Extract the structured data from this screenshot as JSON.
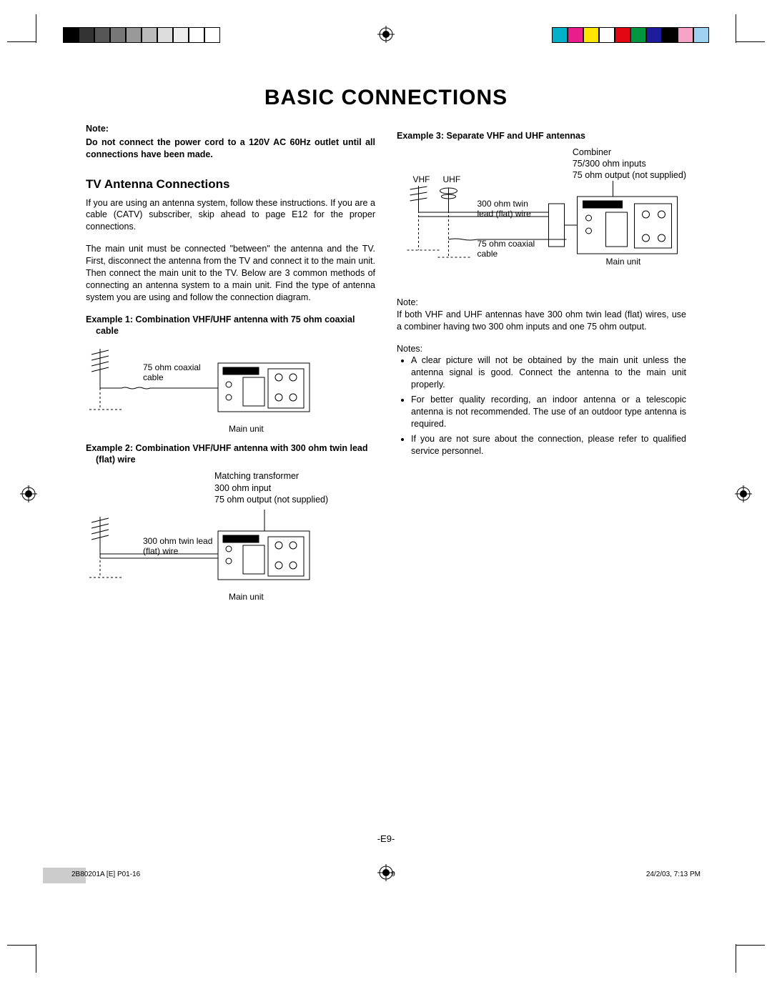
{
  "colorbars": {
    "left": [
      "#000000",
      "#333333",
      "#555555",
      "#777777",
      "#999999",
      "#bbbbbb",
      "#dddddd",
      "#eeeeee",
      "#ffffff",
      "#ffffff"
    ],
    "right": [
      "#00b0c8",
      "#e91e8c",
      "#ffe600",
      "#ffffff",
      "#e30613",
      "#009640",
      "#1d1d9c",
      "#000000",
      "#f5a3c7",
      "#9ed2f0"
    ],
    "border": "#000000"
  },
  "title": "BASIC CONNECTIONS",
  "leftcol": {
    "note_label": "Note:",
    "note_body": "Do not connect the power cord to a 120V AC 60Hz outlet until all connections have been made.",
    "section": "TV Antenna Connections",
    "p1": "If you are using an antenna system, follow these instructions. If you are a cable (CATV) subscriber, skip ahead to page E12 for the proper connections.",
    "p2": "The main unit must be connected \"between\" the antenna and the TV. First, disconnect the antenna from the TV and connect it to the main unit. Then connect the main unit to the TV. Below are 3 common methods of connecting an antenna system to a main unit. Find the type of antenna system you are using and follow the connection diagram.",
    "ex1_title": "Example 1: Combination VHF/UHF antenna with 75 ohm coaxial cable",
    "ex1_lbl_cable": "75 ohm coaxial cable",
    "ex1_caption": "Main unit",
    "ex2_title": "Example 2: Combination VHF/UHF antenna with 300 ohm twin lead (flat) wire",
    "ex2_lbl_trans1": "Matching transformer",
    "ex2_lbl_trans2": "300 ohm input",
    "ex2_lbl_trans3": "75 ohm output (not supplied)",
    "ex2_lbl_wire": "300 ohm twin lead (flat) wire",
    "ex2_caption": "Main unit"
  },
  "rightcol": {
    "ex3_title": "Example 3: Separate VHF and UHF antennas",
    "ex3_lbl_comb1": "Combiner",
    "ex3_lbl_comb2": "75/300 ohm inputs",
    "ex3_lbl_comb3": "75 ohm output (not supplied)",
    "ex3_lbl_vhf": "VHF",
    "ex3_lbl_uhf": "UHF",
    "ex3_lbl_wire": "300 ohm twin lead (flat) wire",
    "ex3_lbl_cable": "75 ohm coaxial cable",
    "ex3_caption": "Main unit",
    "note2_label": "Note:",
    "note2_body": "If both VHF and UHF antennas have 300 ohm twin lead (flat) wires, use a combiner having two 300 ohm inputs and one 75 ohm output.",
    "notes_label": "Notes:",
    "notes": [
      "A clear picture will not be obtained by the main unit unless the antenna signal is good. Connect the antenna to the main unit properly.",
      "For better quality recording, an indoor antenna or a telescopic antenna is not recommended. The use of an outdoor type antenna is required.",
      "If you are not sure about the connection, please refer to qualified service personnel."
    ]
  },
  "pagenum": "-E9-",
  "footline": {
    "left": "2B80201A [E] P01-16",
    "mid": "9",
    "right": "24/2/03, 7:13 PM"
  }
}
